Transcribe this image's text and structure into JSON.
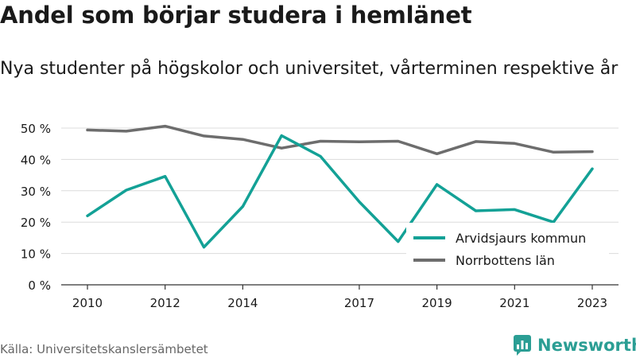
{
  "title": "Andel som börjar studera i hemlänet",
  "subtitle": "Nya studenter på högskolor och universitet, vårterminen respektive år",
  "source": "Källa: Universitetskanslersämbetet",
  "brand": {
    "name": "Newsworthy",
    "icon": "newsworthy-logo-icon"
  },
  "colors": {
    "arvidsjaur": "#13a196",
    "norrbotten": "#6d6d6d",
    "grid": "#dcdcdc",
    "axis": "#333333",
    "brand": "#2b9e94"
  },
  "chart_data": {
    "type": "line",
    "x": [
      2010,
      2011,
      2012,
      2013,
      2014,
      2015,
      2016,
      2017,
      2018,
      2019,
      2020,
      2021,
      2022,
      2023
    ],
    "x_ticks": [
      "2010",
      "2012",
      "2014",
      "2017",
      "2019",
      "2021",
      "2023"
    ],
    "y_ticks": [
      "0 %",
      "10 %",
      "20 %",
      "30 %",
      "40 %",
      "50 %"
    ],
    "ylim": [
      0,
      50
    ],
    "grid": true,
    "legend_position": "bottom-right",
    "series": [
      {
        "name": "Arvidsjaurs kommun",
        "color": "#13a196",
        "values": [
          22,
          30.2,
          34.6,
          12,
          25,
          47.6,
          41,
          26.5,
          13.8,
          32,
          23.6,
          24,
          20,
          37
        ]
      },
      {
        "name": "Norrbottens län",
        "color": "#6d6d6d",
        "values": [
          49.4,
          49,
          50.6,
          47.5,
          46.4,
          43.6,
          45.8,
          45.6,
          45.8,
          41.8,
          45.7,
          45.1,
          42.3,
          42.5
        ]
      }
    ]
  }
}
